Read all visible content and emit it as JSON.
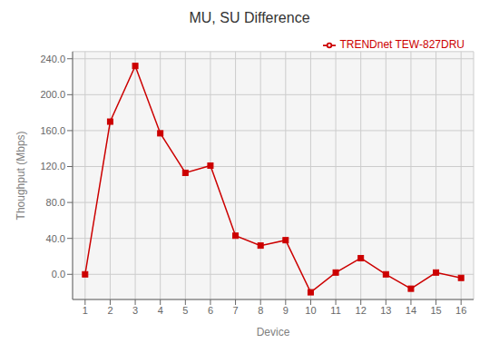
{
  "chart_data": {
    "type": "line",
    "title": "MU, SU Difference",
    "xlabel": "Device",
    "ylabel": "Thoughput (Mbps)",
    "x": [
      1,
      2,
      3,
      4,
      5,
      6,
      7,
      8,
      9,
      10,
      11,
      12,
      13,
      14,
      15,
      16
    ],
    "series": [
      {
        "name": "TRENDnet TEW-827DRU",
        "color": "#cc0000",
        "marker": "square",
        "values": [
          0.0,
          170.0,
          232.0,
          157.0,
          113.0,
          121.0,
          43.0,
          32.0,
          38.0,
          -20.0,
          2.0,
          18.0,
          0.0,
          -16.0,
          2.0,
          -4.0
        ]
      }
    ],
    "xlim": [
      0.5,
      16.5
    ],
    "ylim": [
      -28,
      248
    ],
    "xticks": [
      1,
      2,
      3,
      4,
      5,
      6,
      7,
      8,
      9,
      10,
      11,
      12,
      13,
      14,
      15,
      16
    ],
    "yticks": [
      {
        "value": 0,
        "label": "0.0"
      },
      {
        "value": 40,
        "label": "40.0"
      },
      {
        "value": 80,
        "label": "80.0"
      },
      {
        "value": 120,
        "label": "120.0"
      },
      {
        "value": 160,
        "label": "160.0"
      },
      {
        "value": 200,
        "label": "200.0"
      },
      {
        "value": 240,
        "label": "240.0"
      }
    ],
    "grid": true,
    "legend": "upper right"
  }
}
